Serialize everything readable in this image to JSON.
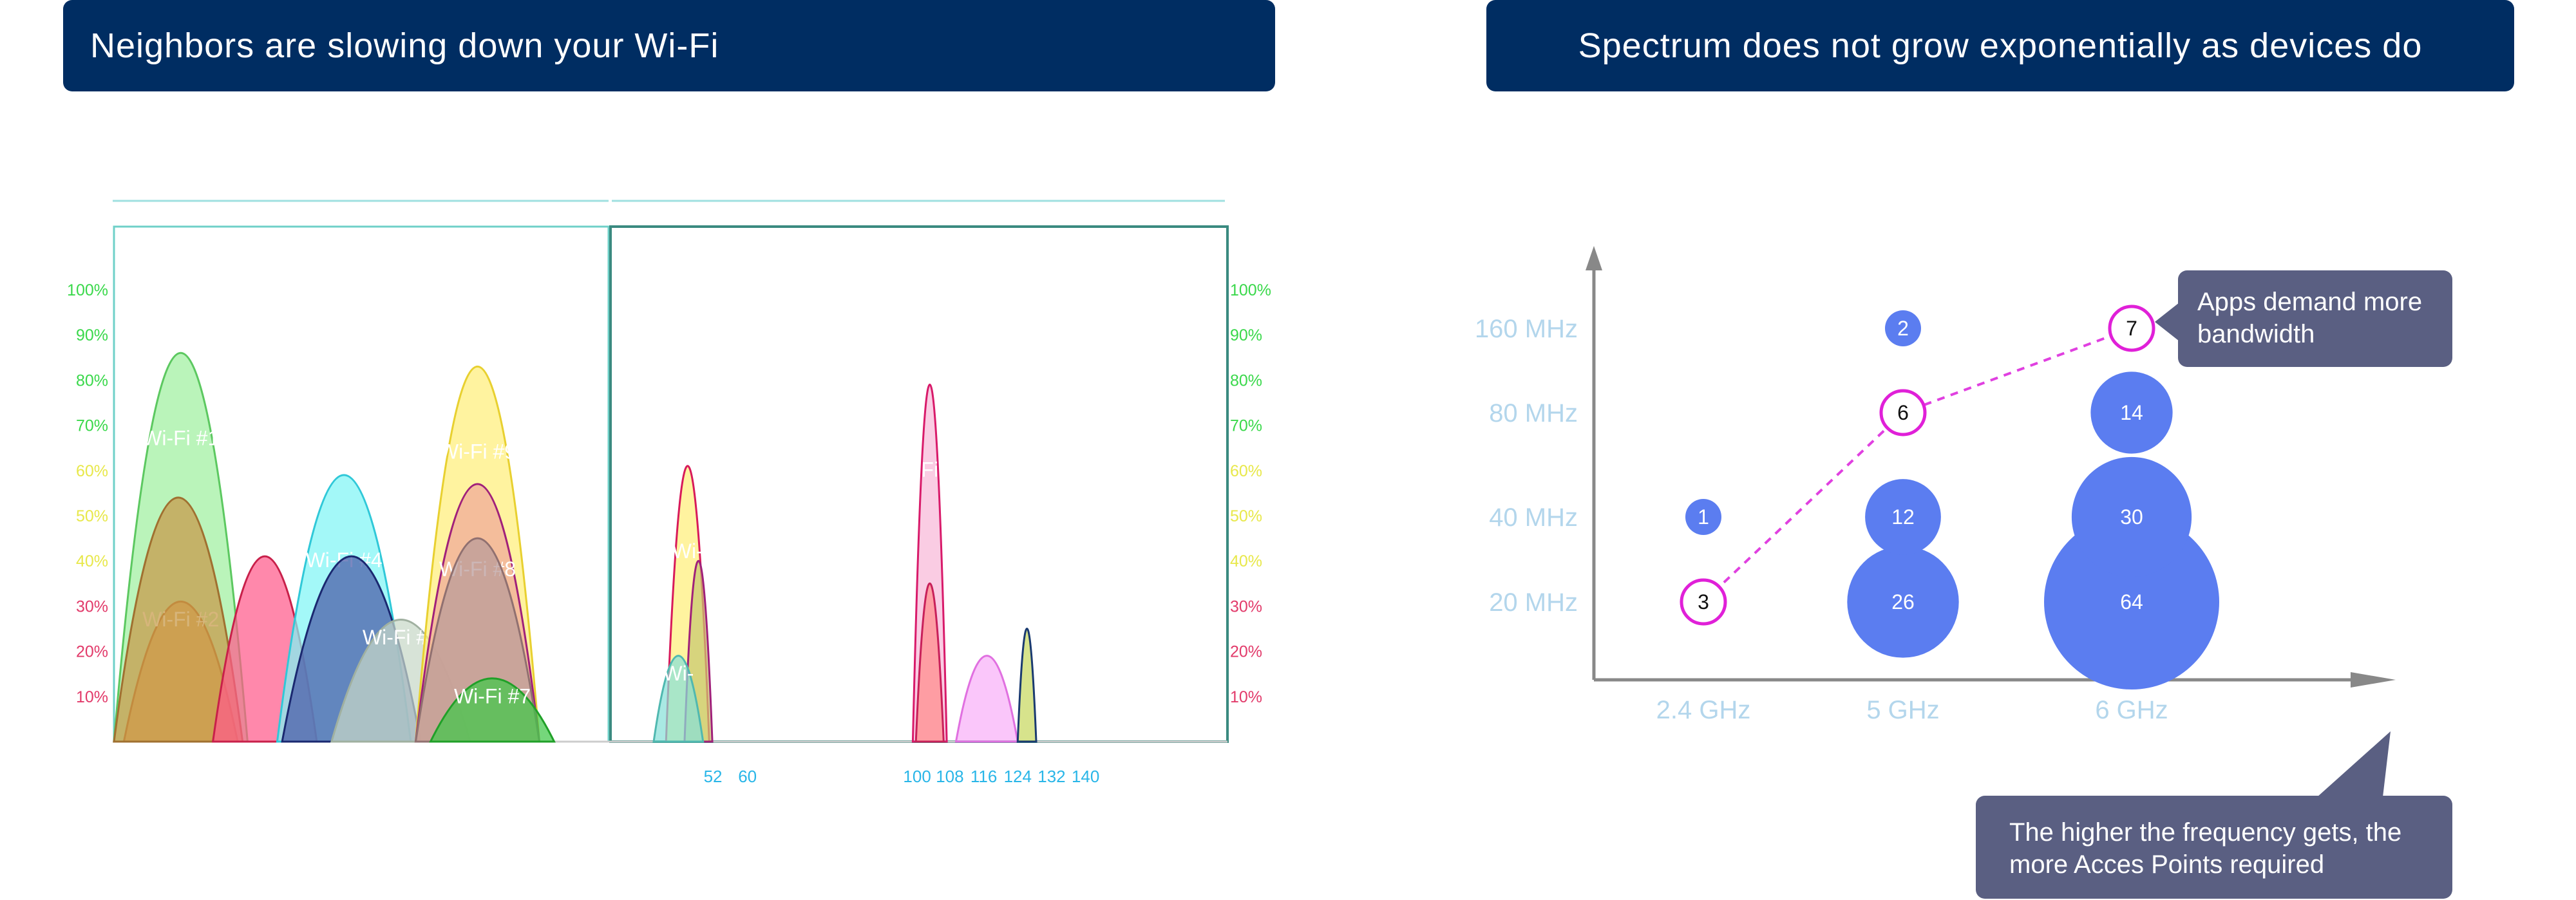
{
  "left_panel": {
    "title": "Neighbors are slowing down your Wi-Fi"
  },
  "right_panel": {
    "title": "Spectrum does not grow exponentially as devices do"
  },
  "callouts": {
    "apps": "Apps demand more bandwidth",
    "frequency": "The higher the frequency gets, the more Acces Points required"
  },
  "chart_data": [
    {
      "type": "area",
      "y_tick_labels": [
        "100%",
        "90%",
        "80%",
        "70%",
        "60%",
        "50%",
        "40%",
        "30%",
        "20%",
        "10%"
      ],
      "y_tick_colors": [
        "#39d84a",
        "#39d84a",
        "#39d84a",
        "#39d84a",
        "#e8e84a",
        "#e8e84a",
        "#e8e84a",
        "#e23a6a",
        "#e23a6a",
        "#e23a6a"
      ],
      "band_24": {
        "networks": [
          {
            "name": "Wi-Fi #1",
            "x_from": 0,
            "x_to": 0.27,
            "peak": 0.86,
            "fill": "#9ff0a0",
            "stroke": "#5cc860",
            "label": "Wi-Fi #1"
          },
          {
            "name": "Wi-Fi #2",
            "x_from": 0.02,
            "x_to": 0.25,
            "peak": 0.31,
            "fill": "#e89a4a",
            "stroke": "#b36a2a",
            "label": "Wi-Fi #2"
          },
          {
            "name": "band-2.4-network-a",
            "x_from": 0.0,
            "x_to": 0.26,
            "peak": 0.54,
            "fill": "#c89848",
            "stroke": "#a07030",
            "label": ""
          },
          {
            "name": "band-2.4-network-b",
            "x_from": 0.2,
            "x_to": 0.41,
            "peak": 0.41,
            "fill": "#ff5a8a",
            "stroke": "#c8204a",
            "label": ""
          },
          {
            "name": "Wi-Fi #4",
            "x_from": 0.33,
            "x_to": 0.6,
            "peak": 0.59,
            "fill": "#7ff5f5",
            "stroke": "#30c8d8",
            "label": "Wi-Fi #4"
          },
          {
            "name": "band-2.4-network-c",
            "x_from": 0.34,
            "x_to": 0.62,
            "peak": 0.41,
            "fill": "#4a5aa8",
            "stroke": "#1a2870",
            "label": ""
          },
          {
            "name": "Wi-Fi #6",
            "x_from": 0.44,
            "x_to": 0.72,
            "peak": 0.27,
            "fill": "#c8d8c8",
            "stroke": "#a0b0a0",
            "label": "Wi-Fi #6"
          },
          {
            "name": "Wi-Fi #9",
            "x_from": 0.61,
            "x_to": 0.86,
            "peak": 0.83,
            "fill": "#ffee7a",
            "stroke": "#e8d030",
            "label": "Wi-Fi #9"
          },
          {
            "name": "Wi-Fi #8",
            "x_from": 0.61,
            "x_to": 0.86,
            "peak": 0.57,
            "fill": "#f0a89a",
            "stroke": "#a0207a",
            "label": "Wi-Fi #8"
          },
          {
            "name": "band-2.4-network-d",
            "x_from": 0.61,
            "x_to": 0.86,
            "peak": 0.45,
            "fill": "#b89a9a",
            "stroke": "#907070",
            "label": ""
          },
          {
            "name": "Wi-Fi #7",
            "x_from": 0.64,
            "x_to": 0.89,
            "peak": 0.14,
            "fill": "#40c848",
            "stroke": "#20a028",
            "label": "Wi-Fi #7"
          }
        ]
      },
      "band_5": {
        "channel_labels": [
          "52",
          "60",
          "100",
          "108",
          "116",
          "124",
          "132",
          "140"
        ],
        "networks": [
          {
            "name": "band-5-network-a",
            "x_from": 0.09,
            "x_to": 0.16,
            "peak": 0.61,
            "fill": "#ffee7a",
            "stroke": "#d81a5a",
            "label": "Wi-"
          },
          {
            "name": "band-5-network-b",
            "x_from": 0.12,
            "x_to": 0.165,
            "peak": 0.4,
            "fill": "#c8c870",
            "stroke": "#a0207a",
            "label": ""
          },
          {
            "name": "band-5-network-c",
            "x_from": 0.07,
            "x_to": 0.15,
            "peak": 0.19,
            "fill": "#88e0d8",
            "stroke": "#50b8b0",
            "label": "Wi-"
          },
          {
            "name": "band-5-network-d",
            "x_from": 0.49,
            "x_to": 0.545,
            "peak": 0.79,
            "fill": "#f8b8d8",
            "stroke": "#d81a6a",
            "label": "Fi"
          },
          {
            "name": "band-5-network-e",
            "x_from": 0.495,
            "x_to": 0.54,
            "peak": 0.35,
            "fill": "#ff8a8a",
            "stroke": "#c8205a",
            "label": ""
          },
          {
            "name": "band-5-network-f",
            "x_from": 0.56,
            "x_to": 0.66,
            "peak": 0.19,
            "fill": "#f8b0f8",
            "stroke": "#e070e0",
            "label": ""
          },
          {
            "name": "band-5-network-g",
            "x_from": 0.66,
            "x_to": 0.69,
            "peak": 0.25,
            "fill": "#c8d860",
            "stroke": "#1a3a70",
            "label": ""
          }
        ]
      }
    },
    {
      "type": "scatter",
      "x_categories": [
        "2.4 GHz",
        "5 GHz",
        "6 GHz"
      ],
      "y_categories": [
        "20 MHz",
        "40 MHz",
        "80 MHz",
        "160 MHz"
      ],
      "bubbles": [
        {
          "x": "2.4 GHz",
          "y": "20 MHz",
          "value": 3,
          "style": "outline"
        },
        {
          "x": "2.4 GHz",
          "y": "40 MHz",
          "value": 1,
          "style": "filled"
        },
        {
          "x": "5 GHz",
          "y": "20 MHz",
          "value": 26,
          "style": "filled"
        },
        {
          "x": "5 GHz",
          "y": "40 MHz",
          "value": 12,
          "style": "filled"
        },
        {
          "x": "5 GHz",
          "y": "80 MHz",
          "value": 6,
          "style": "outline"
        },
        {
          "x": "5 GHz",
          "y": "160 MHz",
          "value": 2,
          "style": "filled"
        },
        {
          "x": "6 GHz",
          "y": "20 MHz",
          "value": 64,
          "style": "filled"
        },
        {
          "x": "6 GHz",
          "y": "40 MHz",
          "value": 30,
          "style": "filled"
        },
        {
          "x": "6 GHz",
          "y": "80 MHz",
          "value": 14,
          "style": "filled"
        },
        {
          "x": "6 GHz",
          "y": "160 MHz",
          "value": 7,
          "style": "outline"
        }
      ],
      "trend_line": [
        3,
        6,
        7
      ],
      "colors": {
        "filled": "#5b7df0",
        "outline": "#e020d8",
        "trend": "#e040e0",
        "axis": "#888888"
      }
    }
  ]
}
